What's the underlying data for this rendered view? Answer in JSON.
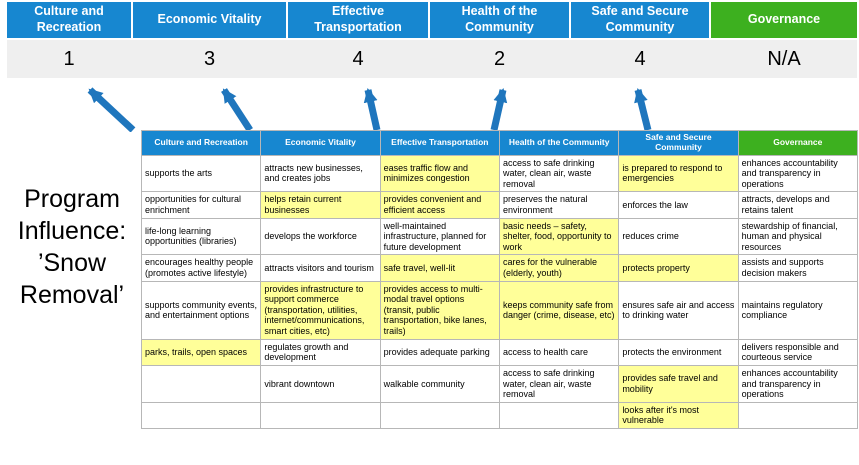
{
  "slide_title": {
    "text": "Program Influence: ’Snow Removal’"
  },
  "colors": {
    "blue": "#1787d0",
    "green": "#3db01f",
    "yellow": "#ffff99",
    "score_bg": "#efefef",
    "arrow": "#1f76bd",
    "border": "#b7b7b7"
  },
  "pillars": [
    {
      "label": "Culture and Recreation",
      "score": "1",
      "type": "blue"
    },
    {
      "label": "Economic Vitality",
      "score": "3",
      "type": "blue"
    },
    {
      "label": "Effective Transportation",
      "score": "4",
      "type": "blue"
    },
    {
      "label": "Health of the Community",
      "score": "2",
      "type": "blue"
    },
    {
      "label": "Safe and Secure Community",
      "score": "4",
      "type": "blue"
    },
    {
      "label": "Governance",
      "score": "N/A",
      "type": "green"
    }
  ],
  "matrix": {
    "headers": [
      "Culture and Recreation",
      "Economic Vitality",
      "Effective Transportation",
      "Health of the Community",
      "Safe and Secure Community",
      "Governance"
    ],
    "rows": [
      [
        {
          "text": "supports the arts",
          "highlight": false
        },
        {
          "text": "attracts new businesses, and creates jobs",
          "highlight": false
        },
        {
          "text": "eases traffic flow and minimizes congestion",
          "highlight": true
        },
        {
          "text": "access to safe drinking water, clean air, waste removal",
          "highlight": false
        },
        {
          "text": "is prepared to respond to emergencies",
          "highlight": true
        },
        {
          "text": "enhances accountability and transparency in operations",
          "highlight": false
        }
      ],
      [
        {
          "text": "opportunities for cultural enrichment",
          "highlight": false
        },
        {
          "text": "helps retain current businesses",
          "highlight": true
        },
        {
          "text": "provides convenient and efficient access",
          "highlight": true
        },
        {
          "text": "preserves the natural environment",
          "highlight": false
        },
        {
          "text": "enforces the law",
          "highlight": false
        },
        {
          "text": "attracts, develops and retains talent",
          "highlight": false
        }
      ],
      [
        {
          "text": "life-long learning opportunities (libraries)",
          "highlight": false
        },
        {
          "text": "develops the workforce",
          "highlight": false
        },
        {
          "text": "well-maintained infrastructure, planned for future development",
          "highlight": false
        },
        {
          "text": "basic needs – safety, shelter, food, opportunity to work",
          "highlight": true
        },
        {
          "text": "reduces crime",
          "highlight": false
        },
        {
          "text": "stewardship of financial, human and physical resources",
          "highlight": false
        }
      ],
      [
        {
          "text": "encourages healthy people (promotes active lifestyle)",
          "highlight": false
        },
        {
          "text": "attracts visitors and tourism",
          "highlight": false
        },
        {
          "text": "safe travel, well-lit",
          "highlight": true
        },
        {
          "text": "cares for the vulnerable (elderly, youth)",
          "highlight": true
        },
        {
          "text": "protects property",
          "highlight": true
        },
        {
          "text": "assists and supports decision makers",
          "highlight": false
        }
      ],
      [
        {
          "text": "supports community events, and entertainment options",
          "highlight": false
        },
        {
          "text": "provides infrastructure to support commerce (transportation, utilities, internet/communications, smart cities, etc)",
          "highlight": true
        },
        {
          "text": "provides access to multi-modal travel options (transit, public transportation, bike lanes, trails)",
          "highlight": true
        },
        {
          "text": "keeps community safe from danger (crime, disease, etc)",
          "highlight": true
        },
        {
          "text": "ensures safe air and access to drinking water",
          "highlight": false
        },
        {
          "text": "maintains regulatory compliance",
          "highlight": false
        }
      ],
      [
        {
          "text": "parks, trails, open spaces",
          "highlight": true
        },
        {
          "text": "regulates growth and development",
          "highlight": false
        },
        {
          "text": "provides adequate parking",
          "highlight": false
        },
        {
          "text": "access to health care",
          "highlight": false
        },
        {
          "text": "protects the environment",
          "highlight": false
        },
        {
          "text": "delivers responsible and courteous service",
          "highlight": false
        }
      ],
      [
        {
          "text": "",
          "highlight": false
        },
        {
          "text": "vibrant downtown",
          "highlight": false
        },
        {
          "text": "walkable community",
          "highlight": false
        },
        {
          "text": "access to safe drinking water, clean air, waste removal",
          "highlight": false
        },
        {
          "text": "provides safe travel and mobility",
          "highlight": true
        },
        {
          "text": "enhances accountability and transparency in operations",
          "highlight": false
        }
      ],
      [
        {
          "text": "",
          "highlight": false
        },
        {
          "text": "",
          "highlight": false
        },
        {
          "text": "",
          "highlight": false
        },
        {
          "text": "",
          "highlight": false
        },
        {
          "text": "looks after it's most vulnerable",
          "highlight": true
        },
        {
          "text": "",
          "highlight": false
        }
      ]
    ]
  }
}
